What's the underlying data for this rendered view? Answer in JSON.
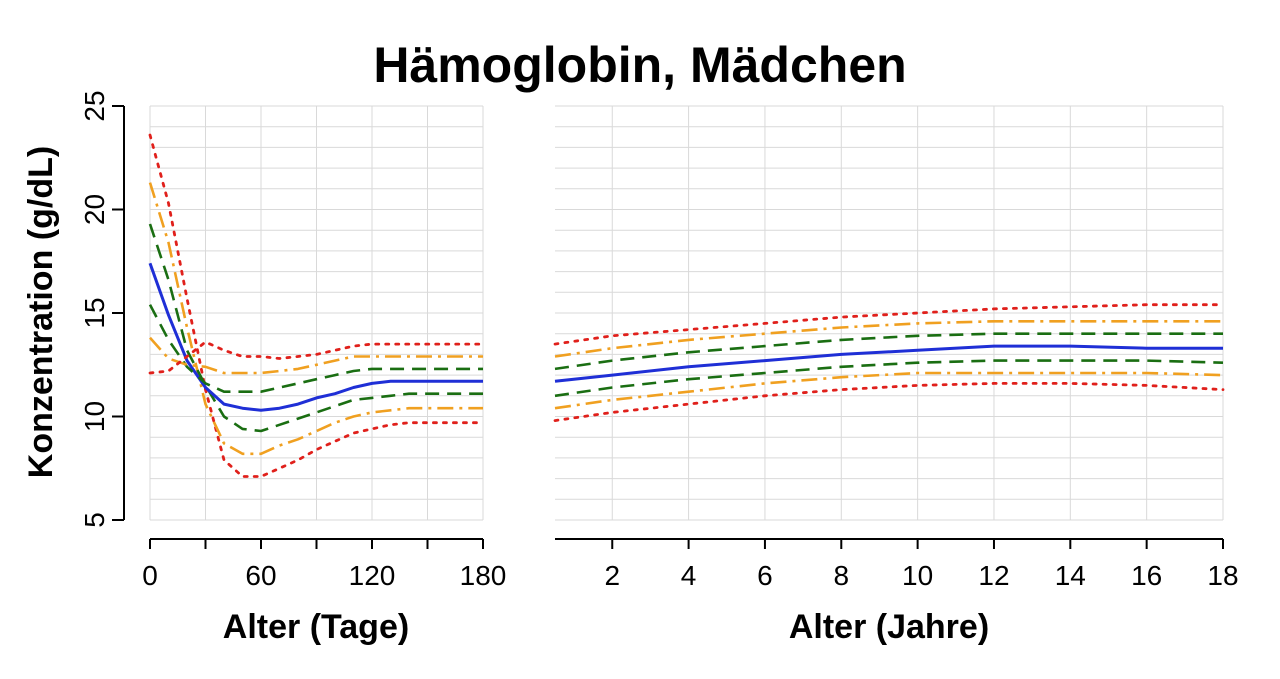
{
  "chart_data": {
    "title": "Hämoglobin, Mädchen",
    "ylabel": "Konzentration (g/dL)",
    "ylim": [
      5,
      25
    ],
    "yticks": [
      5,
      10,
      15,
      20,
      25
    ],
    "ygrid_step": 1,
    "grid": true,
    "colors": {
      "p3": "#e0201b",
      "p10": "#f0a020",
      "p25": "#1a6e12",
      "p50": "#1f2fd6"
    },
    "panels": [
      {
        "type": "line",
        "xlabel": "Alter (Tage)",
        "xlim": [
          0,
          180
        ],
        "xticks": [
          0,
          60,
          120,
          180
        ],
        "xticks_minor": [
          30,
          90,
          150
        ],
        "x": [
          0,
          10,
          20,
          30,
          40,
          50,
          60,
          70,
          80,
          90,
          100,
          110,
          120,
          130,
          140,
          150,
          160,
          170,
          180
        ],
        "series": [
          {
            "key": "p3",
            "style": "dotted",
            "values": [
              23.6,
              20.3,
              15.7,
              11.3,
              7.9,
              7.1,
              7.1,
              7.5,
              7.9,
              8.4,
              8.8,
              9.2,
              9.4,
              9.6,
              9.7,
              9.7,
              9.7,
              9.7,
              9.7
            ]
          },
          {
            "key": "p10",
            "style": "dashdot",
            "values": [
              21.3,
              18.4,
              14.3,
              10.6,
              8.7,
              8.2,
              8.2,
              8.6,
              8.9,
              9.3,
              9.7,
              10.0,
              10.2,
              10.3,
              10.4,
              10.4,
              10.4,
              10.4,
              10.4
            ]
          },
          {
            "key": "p25",
            "style": "dashed",
            "values": [
              19.3,
              16.6,
              13.2,
              11.5,
              10.0,
              9.4,
              9.3,
              9.6,
              9.9,
              10.2,
              10.5,
              10.8,
              10.9,
              11.0,
              11.1,
              11.1,
              11.1,
              11.1,
              11.1
            ]
          },
          {
            "key": "p50",
            "style": "solid",
            "values": [
              17.4,
              14.9,
              12.7,
              11.4,
              10.6,
              10.4,
              10.3,
              10.4,
              10.6,
              10.9,
              11.1,
              11.4,
              11.6,
              11.7,
              11.7,
              11.7,
              11.7,
              11.7,
              11.7
            ]
          },
          {
            "key": "p25",
            "style": "dashed",
            "values": [
              15.4,
              13.7,
              12.4,
              11.6,
              11.2,
              11.2,
              11.2,
              11.4,
              11.6,
              11.8,
              12.0,
              12.2,
              12.3,
              12.3,
              12.3,
              12.3,
              12.3,
              12.3,
              12.3
            ]
          },
          {
            "key": "p10",
            "style": "dashdot",
            "values": [
              13.8,
              12.8,
              12.5,
              12.4,
              12.1,
              12.1,
              12.1,
              12.2,
              12.3,
              12.5,
              12.7,
              12.9,
              12.9,
              12.9,
              12.9,
              12.9,
              12.9,
              12.9,
              12.9
            ]
          },
          {
            "key": "p3",
            "style": "dotted",
            "values": [
              12.1,
              12.2,
              12.9,
              13.6,
              13.2,
              12.9,
              12.9,
              12.8,
              12.9,
              13.0,
              13.2,
              13.4,
              13.5,
              13.5,
              13.5,
              13.5,
              13.5,
              13.5,
              13.5
            ]
          }
        ]
      },
      {
        "type": "line",
        "xlabel": "Alter (Jahre)",
        "xlim": [
          0.5,
          18
        ],
        "xticks": [
          2,
          4,
          6,
          8,
          10,
          12,
          14,
          16,
          18
        ],
        "xticks_minor": [],
        "x": [
          0.5,
          2,
          4,
          6,
          8,
          10,
          12,
          14,
          16,
          18
        ],
        "series": [
          {
            "key": "p3",
            "style": "dotted",
            "values": [
              9.8,
              10.2,
              10.6,
              11.0,
              11.3,
              11.5,
              11.6,
              11.6,
              11.5,
              11.3
            ]
          },
          {
            "key": "p10",
            "style": "dashdot",
            "values": [
              10.4,
              10.8,
              11.2,
              11.6,
              11.9,
              12.1,
              12.1,
              12.1,
              12.1,
              12.0
            ]
          },
          {
            "key": "p25",
            "style": "dashed",
            "values": [
              11.0,
              11.4,
              11.8,
              12.1,
              12.4,
              12.6,
              12.7,
              12.7,
              12.7,
              12.6
            ]
          },
          {
            "key": "p50",
            "style": "solid",
            "values": [
              11.7,
              12.0,
              12.4,
              12.7,
              13.0,
              13.2,
              13.4,
              13.4,
              13.3,
              13.3
            ]
          },
          {
            "key": "p25",
            "style": "dashed",
            "values": [
              12.3,
              12.7,
              13.1,
              13.4,
              13.7,
              13.9,
              14.0,
              14.0,
              14.0,
              14.0
            ]
          },
          {
            "key": "p10",
            "style": "dashdot",
            "values": [
              12.9,
              13.3,
              13.7,
              14.0,
              14.3,
              14.5,
              14.6,
              14.6,
              14.6,
              14.6
            ]
          },
          {
            "key": "p3",
            "style": "dotted",
            "values": [
              13.5,
              13.9,
              14.2,
              14.5,
              14.8,
              15.0,
              15.2,
              15.3,
              15.4,
              15.4
            ]
          }
        ]
      }
    ]
  }
}
